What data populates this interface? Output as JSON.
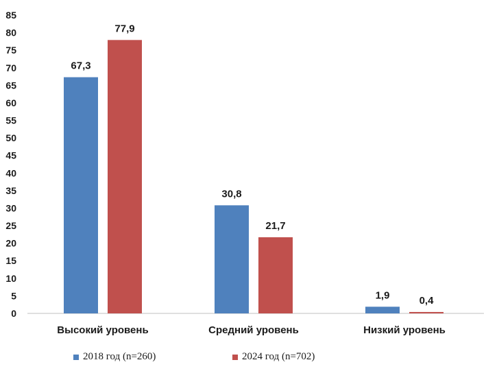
{
  "chart_data": {
    "type": "bar",
    "categories": [
      "Высокий уровень",
      "Средний уровень",
      "Низкий уровень"
    ],
    "series": [
      {
        "name": "2018 год (n=260)",
        "values": [
          67.3,
          30.8,
          1.9
        ],
        "labels": [
          "67,3",
          "30,8",
          "1,9"
        ],
        "color": "#4f81bd"
      },
      {
        "name": "2024 год (n=702)",
        "values": [
          77.9,
          21.7,
          0.4
        ],
        "labels": [
          "77,9",
          "21,7",
          "0,4"
        ],
        "color": "#c0504d"
      }
    ],
    "ylim": [
      0,
      85
    ],
    "yticks": [
      0,
      5,
      10,
      15,
      20,
      25,
      30,
      35,
      40,
      45,
      50,
      55,
      60,
      65,
      70,
      75,
      80,
      85
    ],
    "grid": false,
    "legend_position": "bottom",
    "title": "",
    "xlabel": "",
    "ylabel": ""
  }
}
